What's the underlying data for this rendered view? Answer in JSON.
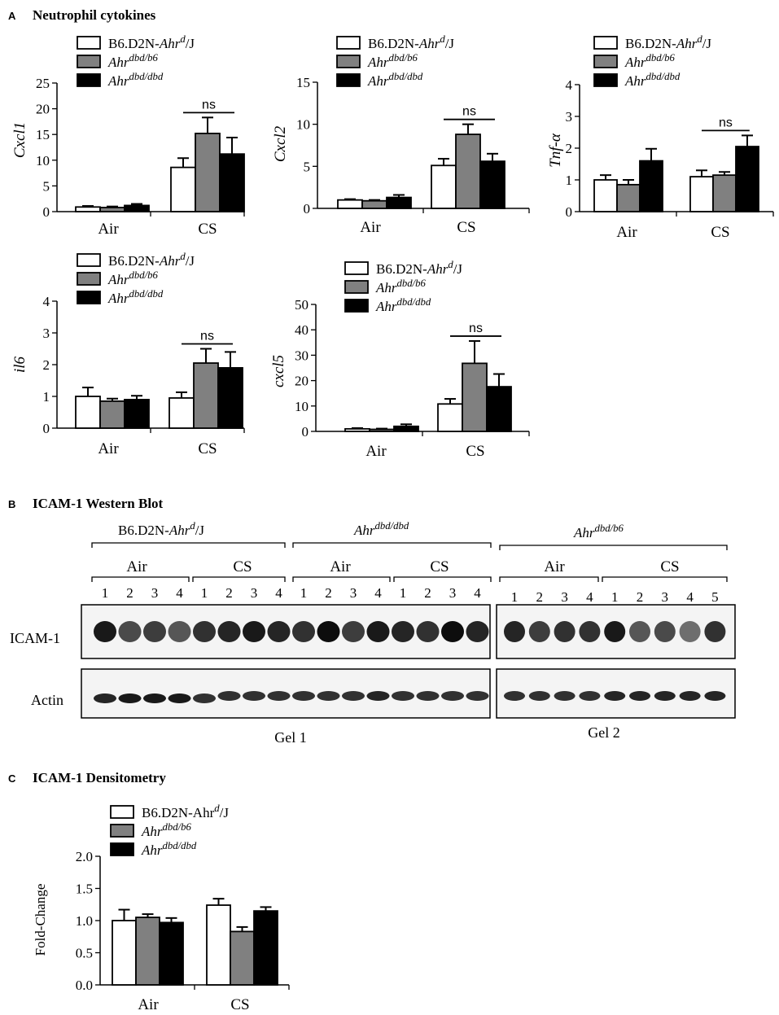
{
  "panels": {
    "A": {
      "letter": "A",
      "title": "Neutrophil cytokines"
    },
    "B": {
      "letter": "B",
      "title": "ICAM-1 Western Blot"
    },
    "C": {
      "letter": "C",
      "title": "ICAM-1 Densitometry"
    }
  },
  "legend_labels": {
    "wt": {
      "base": "B6.D2N-",
      "ital": "Ahr",
      "sup": "d",
      "tail": "/J"
    },
    "het": {
      "base": "",
      "ital": "Ahr",
      "sup": "dbd/b6",
      "tail": ""
    },
    "hom": {
      "base": "",
      "ital": "Ahr",
      "sup": "dbd/dbd",
      "tail": ""
    },
    "wt_plain": {
      "base": "B6.D2N-Ahr",
      "ital": "",
      "sup": "d",
      "tail": "/J"
    }
  },
  "colors": {
    "wt": "#ffffff",
    "het": "#808080",
    "hom": "#000000",
    "axis": "#000000"
  },
  "chart_data": [
    {
      "type": "bar",
      "panel": "A",
      "ylabel": "Cxcl1",
      "categories": [
        "Air",
        "CS"
      ],
      "ylim": [
        0,
        25
      ],
      "yticks": [
        0,
        5,
        10,
        15,
        20,
        25
      ],
      "series": [
        {
          "name": "B6.D2N-Ahrd/J",
          "values": [
            0.9,
            8.6
          ],
          "errors": [
            0.2,
            1.8
          ]
        },
        {
          "name": "Ahrdbd/b6",
          "values": [
            0.8,
            15.2
          ],
          "errors": [
            0.2,
            3.1
          ]
        },
        {
          "name": "Ahrdbd/dbd",
          "values": [
            1.2,
            11.2
          ],
          "errors": [
            0.3,
            3.2
          ]
        }
      ],
      "annotations": [
        {
          "text": "ns",
          "category": "CS"
        }
      ]
    },
    {
      "type": "bar",
      "panel": "A",
      "ylabel": "Cxcl2",
      "categories": [
        "Air",
        "CS"
      ],
      "ylim": [
        0,
        15
      ],
      "yticks": [
        0,
        5,
        10,
        15
      ],
      "series": [
        {
          "name": "B6.D2N-Ahrd/J",
          "values": [
            1.0,
            5.1
          ],
          "errors": [
            0.1,
            0.8
          ]
        },
        {
          "name": "Ahrdbd/b6",
          "values": [
            0.9,
            8.8
          ],
          "errors": [
            0.1,
            1.2
          ]
        },
        {
          "name": "Ahrdbd/dbd",
          "values": [
            1.3,
            5.6
          ],
          "errors": [
            0.3,
            0.9
          ]
        }
      ],
      "annotations": [
        {
          "text": "ns",
          "category": "CS"
        }
      ]
    },
    {
      "type": "bar",
      "panel": "A",
      "ylabel": "Tnf-α",
      "categories": [
        "Air",
        "CS"
      ],
      "ylim": [
        0,
        4
      ],
      "yticks": [
        0,
        1,
        2,
        3,
        4
      ],
      "series": [
        {
          "name": "B6.D2N-Ahrd/J",
          "values": [
            1.0,
            1.1
          ],
          "errors": [
            0.15,
            0.2
          ]
        },
        {
          "name": "Ahrdbd/b6",
          "values": [
            0.85,
            1.15
          ],
          "errors": [
            0.15,
            0.1
          ]
        },
        {
          "name": "Ahrdbd/dbd",
          "values": [
            1.6,
            2.05
          ],
          "errors": [
            0.38,
            0.35
          ]
        }
      ],
      "annotations": [
        {
          "text": "ns",
          "category": "CS"
        }
      ]
    },
    {
      "type": "bar",
      "panel": "A",
      "ylabel": "il6",
      "categories": [
        "Air",
        "CS"
      ],
      "ylim": [
        0,
        4
      ],
      "yticks": [
        0,
        1,
        2,
        3,
        4
      ],
      "series": [
        {
          "name": "B6.D2N-Ahrd/J",
          "values": [
            1.0,
            0.95
          ],
          "errors": [
            0.28,
            0.18
          ]
        },
        {
          "name": "Ahrdbd/b6",
          "values": [
            0.85,
            2.05
          ],
          "errors": [
            0.08,
            0.45
          ]
        },
        {
          "name": "Ahrdbd/dbd",
          "values": [
            0.9,
            1.9
          ],
          "errors": [
            0.12,
            0.5
          ]
        }
      ],
      "annotations": [
        {
          "text": "ns",
          "category": "CS"
        }
      ]
    },
    {
      "type": "bar",
      "panel": "A",
      "ylabel": "cxcl5",
      "categories": [
        "Air",
        "CS"
      ],
      "ylim": [
        0,
        50
      ],
      "yticks": [
        0,
        10,
        20,
        30,
        40,
        50
      ],
      "series": [
        {
          "name": "B6.D2N-Ahrd/J",
          "values": [
            1.0,
            10.8
          ],
          "errors": [
            0.3,
            2.0
          ]
        },
        {
          "name": "Ahrdbd/b6",
          "values": [
            0.8,
            26.8
          ],
          "errors": [
            0.3,
            8.8
          ]
        },
        {
          "name": "Ahrdbd/dbd",
          "values": [
            2.0,
            17.6
          ],
          "errors": [
            0.8,
            5.0
          ]
        }
      ],
      "annotations": [
        {
          "text": "ns",
          "category": "CS"
        }
      ]
    },
    {
      "type": "bar",
      "panel": "C",
      "ylabel": "Fold-Change",
      "categories": [
        "Air",
        "CS"
      ],
      "ylim": [
        0,
        2.0
      ],
      "yticks": [
        "0.0",
        "0.5",
        "1.0",
        "1.5",
        "2.0"
      ],
      "series": [
        {
          "name": "B6.D2N-Ahrd/J",
          "values": [
            1.0,
            1.24
          ],
          "errors": [
            0.17,
            0.1
          ]
        },
        {
          "name": "Ahrdbd/b6",
          "values": [
            1.05,
            0.83
          ],
          "errors": [
            0.05,
            0.07
          ]
        },
        {
          "name": "Ahrdbd/dbd",
          "values": [
            0.97,
            1.15
          ],
          "errors": [
            0.07,
            0.06
          ]
        }
      ]
    }
  ],
  "western_blot": {
    "groups": [
      {
        "base": "B6.D2N-",
        "ital": "Ahr",
        "sup": "d",
        "tail": "/J"
      },
      {
        "base": "",
        "ital": "Ahr",
        "sup": "dbd/dbd",
        "tail": ""
      },
      {
        "base": "",
        "ital": "Ahr",
        "sup": "dbd/b6",
        "tail": ""
      }
    ],
    "subgroups": [
      "Air",
      "CS",
      "Air",
      "CS",
      "Air",
      "CS"
    ],
    "lanes_gel1": [
      "1",
      "2",
      "3",
      "4",
      "1",
      "2",
      "3",
      "4",
      "1",
      "2",
      "3",
      "4",
      "1",
      "2",
      "3",
      "4"
    ],
    "lanes_gel2": [
      "1",
      "2",
      "3",
      "4",
      "1",
      "2",
      "3",
      "4",
      "5"
    ],
    "row_labels": [
      "ICAM-1",
      "Actin"
    ],
    "gel_labels": [
      "Gel 1",
      "Gel 2"
    ],
    "icam_intensity_gel1": [
      0.95,
      0.75,
      0.8,
      0.7,
      0.85,
      0.9,
      0.95,
      0.9,
      0.85,
      1.0,
      0.8,
      0.95,
      0.9,
      0.85,
      1.0,
      0.9
    ],
    "icam_intensity_gel2": [
      0.9,
      0.8,
      0.85,
      0.85,
      0.95,
      0.7,
      0.75,
      0.6,
      0.85
    ],
    "actin_intensity_gel1": [
      0.9,
      0.95,
      0.95,
      0.95,
      0.85,
      0.85,
      0.85,
      0.85,
      0.85,
      0.85,
      0.85,
      0.9,
      0.85,
      0.85,
      0.85,
      0.85
    ],
    "actin_intensity_gel2": [
      0.85,
      0.85,
      0.85,
      0.85,
      0.9,
      0.9,
      0.9,
      0.9,
      0.9
    ]
  }
}
